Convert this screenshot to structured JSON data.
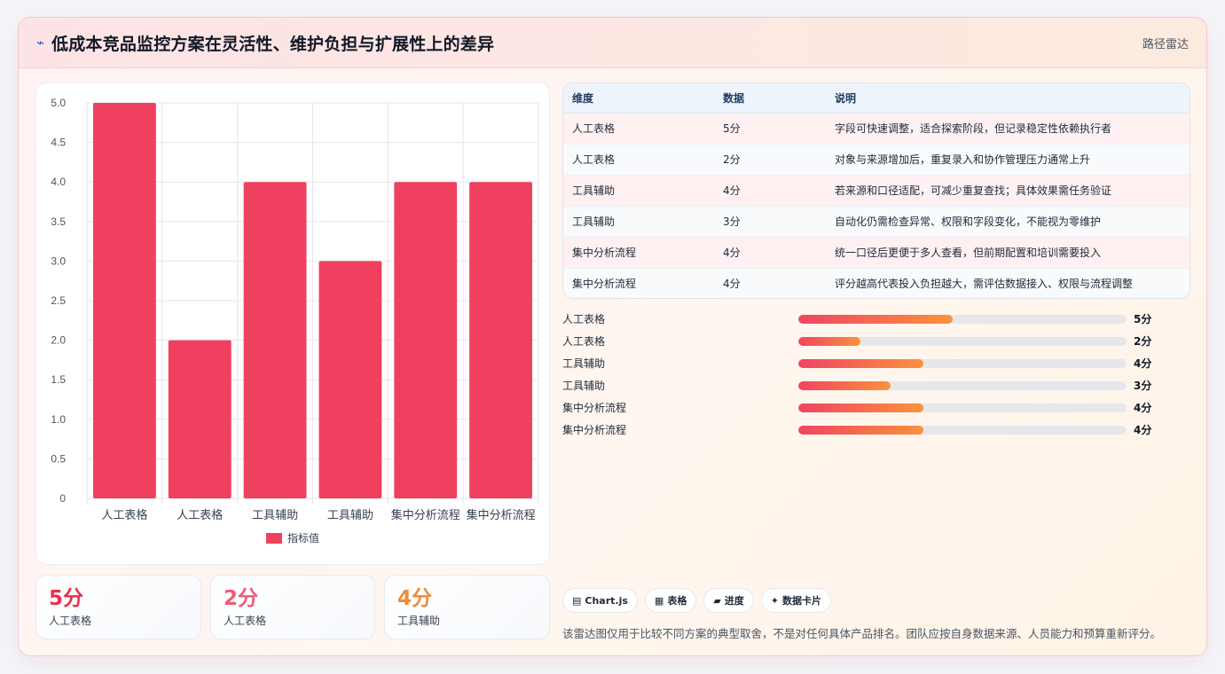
{
  "header": {
    "icon": "⌁",
    "title": "低成本竞品监控方案在灵活性、维护负担与扩展性上的差异",
    "tag": "路径雷达"
  },
  "chart_data": {
    "type": "bar",
    "categories": [
      "人工表格",
      "人工表格",
      "工具辅助",
      "工具辅助",
      "集中分析流程",
      "集中分析流程"
    ],
    "series": [
      {
        "name": "指标值",
        "values": [
          5,
          2,
          4,
          3,
          4,
          4
        ],
        "color": "#f0405f"
      }
    ],
    "ylim": [
      0,
      5
    ],
    "yticks": [
      "0",
      "0.5",
      "1.0",
      "1.5",
      "2.0",
      "2.5",
      "3.0",
      "3.5",
      "4.0",
      "4.5",
      "5.0"
    ],
    "grid": true,
    "legend": "bottom"
  },
  "stats": [
    {
      "value": "5分",
      "label": "人工表格",
      "color": "#e8304f"
    },
    {
      "value": "2分",
      "label": "人工表格",
      "color": "#ef5b76"
    },
    {
      "value": "4分",
      "label": "工具辅助",
      "color": "#f28a37"
    }
  ],
  "table": {
    "headers": [
      "维度",
      "数据",
      "说明"
    ],
    "rows": [
      [
        "人工表格",
        "5分",
        "字段可快速调整，适合探索阶段，但记录稳定性依赖执行者"
      ],
      [
        "人工表格",
        "2分",
        "对象与来源增加后，重复录入和协作管理压力通常上升"
      ],
      [
        "工具辅助",
        "4分",
        "若来源和口径适配，可减少重复查找；具体效果需任务验证"
      ],
      [
        "工具辅助",
        "3分",
        "自动化仍需检查异常、权限和字段变化，不能视为零维护"
      ],
      [
        "集中分析流程",
        "4分",
        "统一口径后更便于多人查看，但前期配置和培训需要投入"
      ],
      [
        "集中分析流程",
        "4分",
        "评分越高代表投入负担越大，需评估数据接入、权限与流程调整"
      ]
    ]
  },
  "progress": [
    {
      "label": "人工表格",
      "value": "5分",
      "fraction": 0.47
    },
    {
      "label": "人工表格",
      "value": "2分",
      "fraction": 0.19
    },
    {
      "label": "工具辅助",
      "value": "4分",
      "fraction": 0.38
    },
    {
      "label": "工具辅助",
      "value": "3分",
      "fraction": 0.28
    },
    {
      "label": "集中分析流程",
      "value": "4分",
      "fraction": 0.38
    },
    {
      "label": "集中分析流程",
      "value": "4分",
      "fraction": 0.38
    }
  ],
  "chips": [
    {
      "icon": "▤",
      "label": "Chart.js"
    },
    {
      "icon": "▦",
      "label": "表格"
    },
    {
      "icon": "▰",
      "label": "进度"
    },
    {
      "icon": "✦",
      "label": "数据卡片"
    }
  ],
  "note": "该雷达图仅用于比较不同方案的典型取舍，不是对任何具体产品排名。团队应按自身数据来源、人员能力和预算重新评分。"
}
